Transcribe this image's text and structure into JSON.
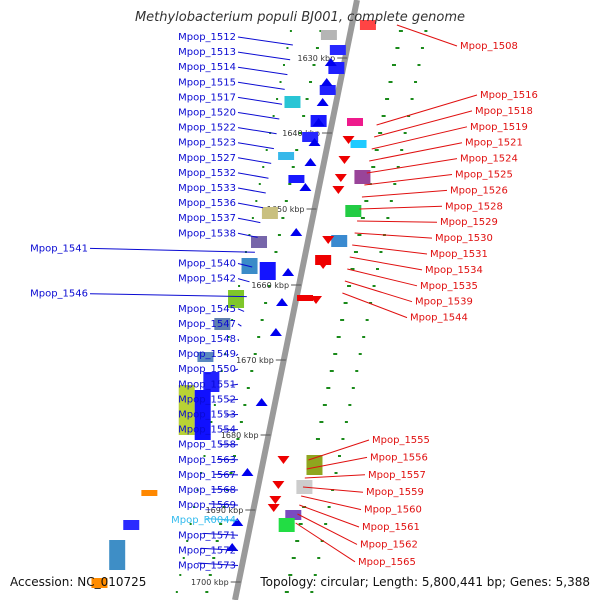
{
  "title": "Methylobacterium populi BJ001, complete genome",
  "footer": {
    "accession": "Accession: NC_010725",
    "topology": "Topology: circular; Length: 5,800,441 bp; Genes: 5,388"
  },
  "colors": {
    "left_label": "#0a0ad2",
    "right_label": "#e01010",
    "rna_label": "#33bbee",
    "backbone": "#999999",
    "plus_strand": "#0000ee",
    "minus_strand": "#ee0000",
    "dot": "#1a8a1a"
  },
  "ticks": [
    "1630 kbp",
    "1640 kbp",
    "1650 kbp",
    "1660 kbp",
    "1670 kbp",
    "1680 kbp",
    "1690 kbp",
    "1700 kbp"
  ],
  "left_labels": [
    "Mpop_1512",
    "Mpop_1513",
    "Mpop_1514",
    "Mpop_1515",
    "Mpop_1517",
    "Mpop_1520",
    "Mpop_1522",
    "Mpop_1523",
    "Mpop_1527",
    "Mpop_1532",
    "Mpop_1533",
    "Mpop_1536",
    "Mpop_1537",
    "Mpop_1538",
    "Mpop_1541",
    "Mpop_1540",
    "Mpop_1542",
    "Mpop_1546",
    "Mpop_1545",
    "Mpop_1547",
    "Mpop_1548",
    "Mpop_1549",
    "Mpop_1550",
    "Mpop_1551",
    "Mpop_1552",
    "Mpop_1553",
    "Mpop_1554",
    "Mpop_1558",
    "Mpop_1563",
    "Mpop_1567",
    "Mpop_1568",
    "Mpop_1569",
    "Mpop_R0044",
    "Mpop_1571",
    "Mpop_1572",
    "Mpop_1573"
  ],
  "right_labels": [
    "Mpop_1508",
    "Mpop_1516",
    "Mpop_1518",
    "Mpop_1519",
    "Mpop_1521",
    "Mpop_1524",
    "Mpop_1525",
    "Mpop_1526",
    "Mpop_1528",
    "Mpop_1529",
    "Mpop_1530",
    "Mpop_1531",
    "Mpop_1534",
    "Mpop_1535",
    "Mpop_1539",
    "Mpop_1544",
    "Mpop_1555",
    "Mpop_1556",
    "Mpop_1557",
    "Mpop_1559",
    "Mpop_1560",
    "Mpop_1561",
    "Mpop_1562",
    "Mpop_1565"
  ]
}
